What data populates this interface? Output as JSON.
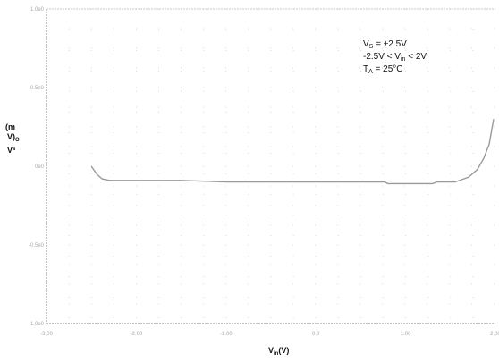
{
  "chart_data": {
    "type": "line",
    "title": "",
    "xlabel": {
      "main": "V",
      "sub": "in",
      "unit": "(V)"
    },
    "ylabel": {
      "line1": "(m",
      "line2": "V)",
      "sub": "O",
      "line3": "V",
      "sup": "s"
    },
    "xlim": [
      -3.0,
      2.0
    ],
    "ylim": [
      -1.0,
      1.0
    ],
    "x_ticks": [
      {
        "value": -3.0,
        "label": "-3.00"
      },
      {
        "value": -2.0,
        "label": "-2.00"
      },
      {
        "value": -1.0,
        "label": "-1.00"
      },
      {
        "value": 0.0,
        "label": "0.0"
      },
      {
        "value": 1.0,
        "label": "1.00"
      },
      {
        "value": 2.0,
        "label": "2.00"
      }
    ],
    "y_ticks": [
      {
        "value": 1.0,
        "label": "1.0e0"
      },
      {
        "value": 0.5,
        "label": "0.5e0"
      },
      {
        "value": 0.0,
        "label": "0e0"
      },
      {
        "value": -0.5,
        "label": "-0.5e0"
      },
      {
        "value": -1.0,
        "label": "-1.0e0"
      }
    ],
    "grid": true,
    "conditions": [
      {
        "main": "V",
        "sub": "S",
        "rest": " = ±2.5V"
      },
      {
        "pre": "-2.5V < V",
        "sub": "in",
        "rest": " < 2V"
      },
      {
        "main": "T",
        "sub": "A",
        "rest": " = 25°C"
      }
    ],
    "series": [
      {
        "color": "#9a9a9a",
        "points": [
          [
            -2.5,
            0.0
          ],
          [
            -2.44,
            -0.05
          ],
          [
            -2.38,
            -0.08
          ],
          [
            -2.3,
            -0.09
          ],
          [
            -2.0,
            -0.09
          ],
          [
            -1.5,
            -0.09
          ],
          [
            -1.0,
            -0.1
          ],
          [
            -0.5,
            -0.1
          ],
          [
            0.0,
            -0.1
          ],
          [
            0.5,
            -0.1
          ],
          [
            0.77,
            -0.1
          ],
          [
            0.8,
            -0.11
          ],
          [
            1.3,
            -0.11
          ],
          [
            1.35,
            -0.1
          ],
          [
            1.55,
            -0.1
          ],
          [
            1.7,
            -0.07
          ],
          [
            1.8,
            -0.02
          ],
          [
            1.87,
            0.05
          ],
          [
            1.93,
            0.14
          ],
          [
            1.98,
            0.3
          ]
        ]
      }
    ]
  }
}
